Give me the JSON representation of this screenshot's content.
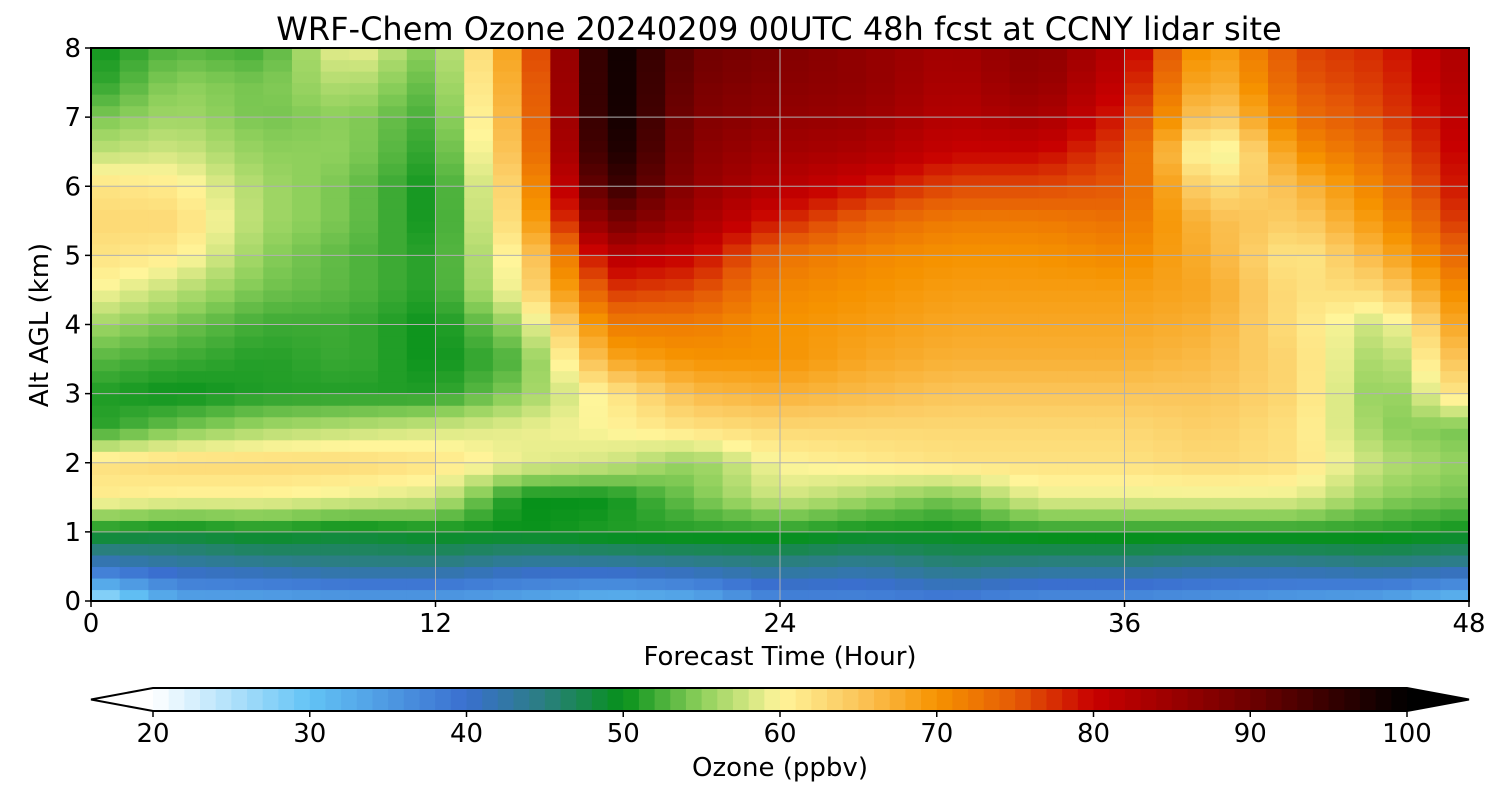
{
  "chart_data": {
    "type": "heatmap",
    "title": "WRF-Chem Ozone  20240209 00UTC 48h fcst at CCNY lidar site",
    "xlabel": "Forecast Time (Hour)",
    "ylabel": "Alt AGL (km)",
    "xlim": [
      0,
      48
    ],
    "ylim": [
      0,
      8
    ],
    "xticks": [
      "0",
      "12",
      "24",
      "36",
      "48"
    ],
    "yticks": [
      "0",
      "1",
      "2",
      "3",
      "4",
      "5",
      "6",
      "7",
      "8"
    ],
    "grid": true,
    "x_hours": [
      0,
      3,
      6,
      9,
      12,
      15,
      18,
      21,
      24,
      27,
      30,
      33,
      36,
      39,
      42,
      45,
      48
    ],
    "y_km": [
      0,
      0.5,
      1,
      1.5,
      2,
      2.5,
      3,
      3.5,
      4,
      4.5,
      5,
      5.5,
      6,
      6.5,
      7,
      7.5,
      8
    ],
    "z_ozone_ppbv": [
      [
        24,
        33,
        33,
        34,
        34,
        33,
        31,
        32,
        37,
        37,
        38,
        36,
        36,
        35,
        34,
        33,
        30
      ],
      [
        40,
        42,
        43,
        44,
        44,
        42,
        42,
        43,
        44,
        43,
        45,
        44,
        44,
        43,
        43,
        44,
        43
      ],
      [
        50,
        49,
        50,
        49,
        50,
        50,
        51,
        51,
        51,
        50,
        50,
        51,
        51,
        51,
        51,
        51,
        50
      ],
      [
        61,
        60,
        60,
        59,
        58,
        50,
        50,
        54,
        58,
        56,
        54,
        59,
        59,
        59,
        59,
        55,
        54
      ],
      [
        62,
        63,
        63,
        63,
        62,
        59,
        58,
        55,
        60,
        61,
        62,
        62,
        62,
        63,
        62,
        57,
        55
      ],
      [
        51,
        54,
        56,
        57,
        58,
        59,
        60,
        62,
        63,
        63,
        63,
        63,
        63,
        64,
        62,
        55,
        54
      ],
      [
        51,
        50,
        51,
        51,
        51,
        55,
        61,
        66,
        67,
        66,
        65,
        65,
        65,
        65,
        63,
        54,
        63
      ],
      [
        53,
        52,
        51,
        52,
        50,
        53,
        68,
        70,
        70,
        68,
        67,
        67,
        67,
        66,
        63,
        55,
        67
      ],
      [
        56,
        54,
        52,
        52,
        50,
        56,
        72,
        72,
        70,
        69,
        68,
        68,
        68,
        67,
        62,
        57,
        70
      ],
      [
        60,
        57,
        54,
        53,
        51,
        61,
        77,
        76,
        71,
        70,
        69,
        69,
        69,
        68,
        62,
        63,
        72
      ],
      [
        62,
        61,
        55,
        53,
        51,
        62,
        82,
        80,
        73,
        71,
        70,
        70,
        71,
        67,
        61,
        67,
        75
      ],
      [
        63,
        63,
        56,
        54,
        50,
        65,
        90,
        84,
        78,
        74,
        72,
        72,
        73,
        66,
        64,
        70,
        78
      ],
      [
        62,
        61,
        56,
        54,
        50,
        66,
        96,
        86,
        82,
        79,
        76,
        76,
        75,
        62,
        66,
        72,
        80
      ],
      [
        57,
        58,
        55,
        55,
        51,
        68,
        99,
        87,
        84,
        83,
        80,
        80,
        76,
        57,
        70,
        74,
        81
      ],
      [
        54,
        56,
        54,
        55,
        52,
        69,
        100,
        88,
        86,
        85,
        82,
        84,
        78,
        63,
        73,
        76,
        82
      ],
      [
        51,
        55,
        54,
        57,
        53,
        70,
        100,
        89,
        87,
        86,
        83,
        86,
        80,
        66,
        75,
        77,
        83
      ],
      [
        50,
        53,
        52,
        60,
        54,
        71,
        100,
        90,
        88,
        86,
        84,
        87,
        82,
        68,
        76,
        78,
        84
      ]
    ],
    "colorbar": {
      "label": "Ozone  (ppbv)",
      "min": 20,
      "max": 100,
      "extend": "both",
      "ticks": [
        "20",
        "30",
        "40",
        "50",
        "60",
        "70",
        "80",
        "90",
        "100"
      ],
      "colormap_stops": [
        [
          20,
          "#ffffff"
        ],
        [
          30,
          "#62c3f5"
        ],
        [
          40,
          "#3a6fcf"
        ],
        [
          45,
          "#2a7f7f"
        ],
        [
          50,
          "#06911a"
        ],
        [
          55,
          "#8fd05c"
        ],
        [
          60,
          "#fff59a"
        ],
        [
          65,
          "#fbc55a"
        ],
        [
          70,
          "#f69300"
        ],
        [
          75,
          "#e55a06"
        ],
        [
          80,
          "#c80000"
        ],
        [
          90,
          "#6e0000"
        ],
        [
          100,
          "#000000"
        ]
      ]
    }
  }
}
